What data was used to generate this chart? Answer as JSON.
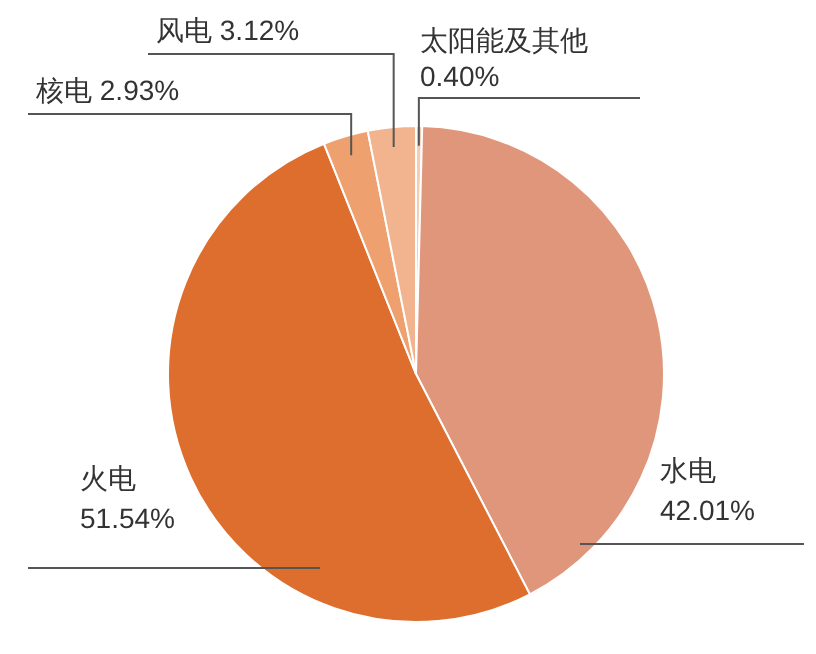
{
  "chart_data": {
    "type": "pie",
    "categories": [
      "太阳能及其他",
      "水电",
      "火电",
      "核电",
      "风电"
    ],
    "values": [
      0.4,
      42.01,
      51.54,
      2.93,
      3.12
    ],
    "value_labels": [
      "0.40%",
      "42.01%",
      "51.54%",
      "2.93%",
      "3.12%"
    ],
    "colors": [
      "#f5cdb4",
      "#e0967a",
      "#dd6e2e",
      "#eea06e",
      "#f2b48e"
    ]
  }
}
